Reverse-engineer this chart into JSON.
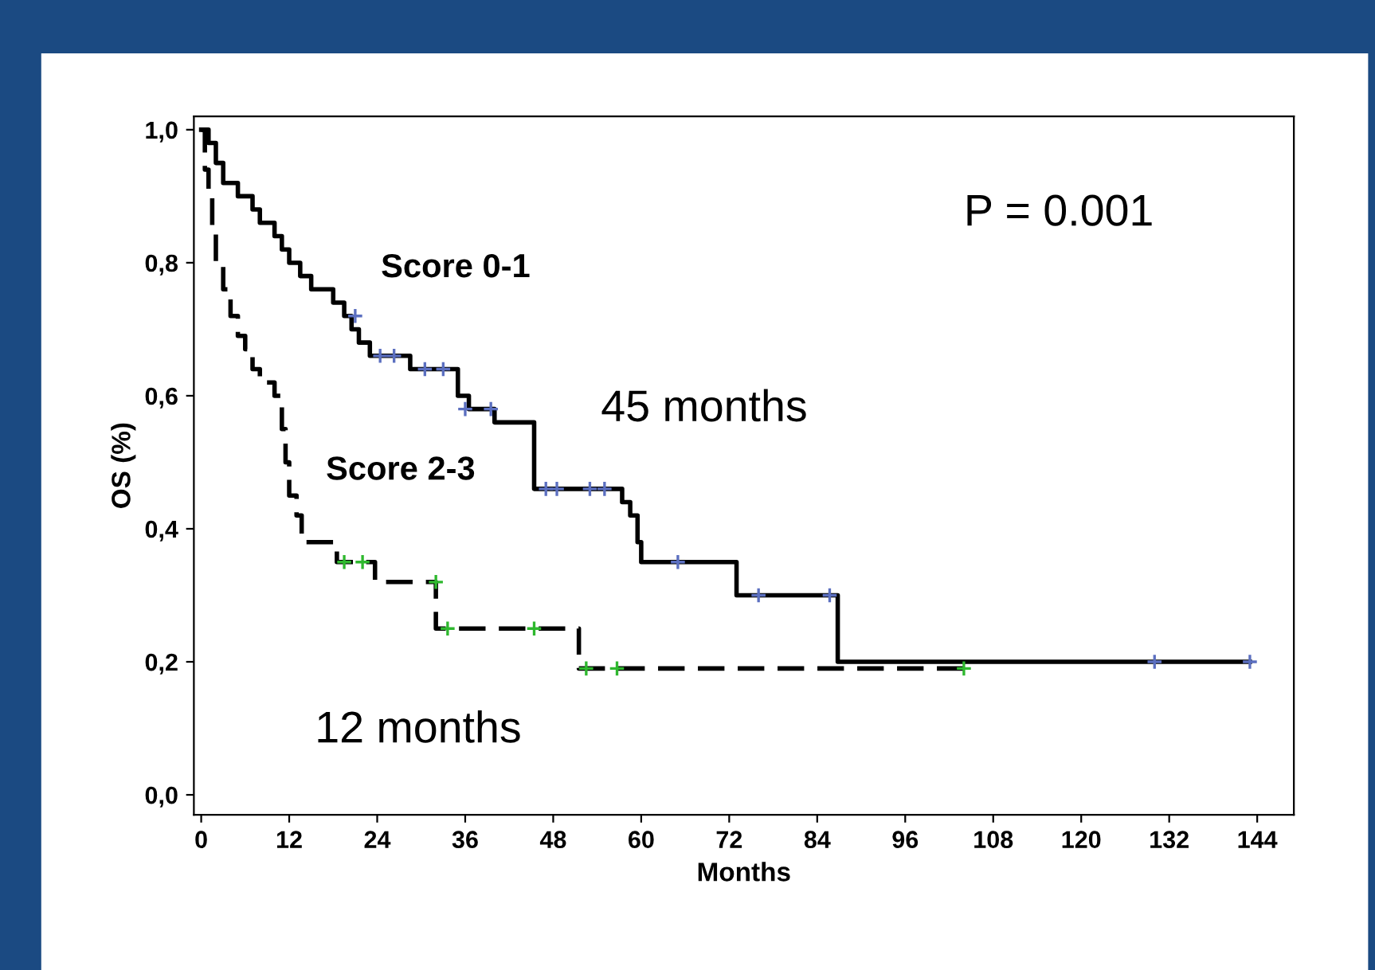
{
  "chart_data": {
    "type": "step",
    "xlabel": "Months",
    "ylabel": "OS (%)",
    "xlim": [
      -1,
      149
    ],
    "ylim": [
      -0.03,
      1.02
    ],
    "xticks": [
      0,
      12,
      24,
      36,
      48,
      60,
      72,
      84,
      96,
      108,
      120,
      132,
      144
    ],
    "yticks": [
      {
        "value": 0,
        "label": "0,0"
      },
      {
        "value": 0.2,
        "label": "0,2"
      },
      {
        "value": 0.4,
        "label": "0,4"
      },
      {
        "value": 0.6,
        "label": "0,6"
      },
      {
        "value": 0.8,
        "label": "0,8"
      },
      {
        "value": 1.0,
        "label": "1,0"
      }
    ],
    "grid": false,
    "legend": false,
    "series": [
      {
        "name": "Score 0-1",
        "color": "#000000",
        "line_style": "solid",
        "marker": "none",
        "x": [
          0,
          1,
          2,
          3,
          5,
          7,
          8,
          10,
          11,
          12,
          13.5,
          15,
          18,
          19.5,
          20.5,
          21.5,
          23,
          28.5,
          35,
          36.5,
          40,
          45.4,
          57.4,
          58.5,
          59.5,
          60,
          73,
          86.8,
          143
        ],
        "values": [
          1.0,
          0.98,
          0.95,
          0.92,
          0.9,
          0.88,
          0.86,
          0.84,
          0.82,
          0.8,
          0.78,
          0.76,
          0.74,
          0.72,
          0.7,
          0.68,
          0.66,
          0.64,
          0.6,
          0.58,
          0.56,
          0.46,
          0.44,
          0.42,
          0.38,
          0.35,
          0.3,
          0.2,
          0.2
        ]
      },
      {
        "name": "Score 2-3",
        "color": "#000000",
        "line_style": "dashed",
        "marker": "none",
        "x": [
          0,
          0.5,
          1,
          1.5,
          2,
          3,
          4,
          5,
          6,
          7,
          8,
          10,
          11,
          11.5,
          12,
          13,
          13.7,
          18.5,
          23.7,
          32,
          51.5,
          104
        ],
        "values": [
          1.0,
          0.94,
          0.9,
          0.85,
          0.8,
          0.76,
          0.72,
          0.69,
          0.67,
          0.64,
          0.62,
          0.6,
          0.55,
          0.5,
          0.45,
          0.42,
          0.38,
          0.35,
          0.32,
          0.25,
          0.19,
          0.19
        ]
      },
      {
        "type": "scatter",
        "color": "#5b6fc0",
        "marker": "cross",
        "x": [
          21,
          24.4,
          26.3,
          30.5,
          33,
          36,
          39.5,
          47,
          48.5,
          53,
          55,
          65,
          76,
          85.7,
          130,
          143
        ],
        "values": [
          0.72,
          0.66,
          0.66,
          0.64,
          0.64,
          0.58,
          0.58,
          0.46,
          0.46,
          0.46,
          0.46,
          0.35,
          0.3,
          0.3,
          0.2,
          0.2
        ]
      },
      {
        "type": "scatter",
        "color": "#2eb82e",
        "marker": "cross",
        "x": [
          19.5,
          22,
          32,
          33.6,
          45.4,
          52.5,
          56.7,
          104
        ],
        "values": [
          0.35,
          0.35,
          0.32,
          0.25,
          0.25,
          0.19,
          0.19,
          0.19
        ]
      }
    ],
    "annotations": [
      "P = 0.001",
      "45 months",
      "12 months"
    ]
  }
}
